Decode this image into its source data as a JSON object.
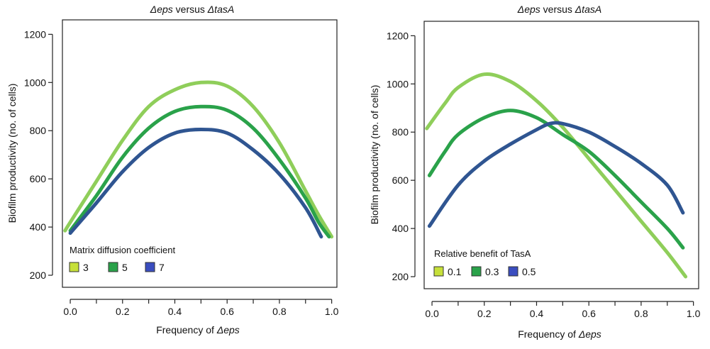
{
  "chart_data": [
    {
      "type": "line",
      "title_parts": [
        "Δeps",
        " versus ",
        "ΔtasA"
      ],
      "xlabel_parts": [
        "Frequency of ",
        "Δeps"
      ],
      "ylabel": "Biofilm productivity (no. of cells)",
      "xlim": [
        -0.03,
        1.02
      ],
      "ylim": [
        150,
        1260
      ],
      "xticks": [
        0.0,
        0.2,
        0.4,
        0.6,
        0.8,
        1.0
      ],
      "xtick_labels": [
        "0.0",
        "0.2",
        "0.4",
        "0.6",
        "0.8",
        "1.0"
      ],
      "yticks": [
        200,
        400,
        600,
        800,
        1000,
        1200
      ],
      "ytick_labels": [
        "200",
        "400",
        "600",
        "800",
        "1000",
        "1200"
      ],
      "grid": false,
      "legend": {
        "title": "Matrix diffusion coefficient",
        "placement": "bottom-left",
        "entries": [
          "3",
          "5",
          "7"
        ]
      },
      "series": [
        {
          "name": "3",
          "color": "#8fce5a",
          "x": [
            -0.02,
            0.0,
            0.1,
            0.2,
            0.3,
            0.4,
            0.5,
            0.6,
            0.7,
            0.8,
            0.9,
            0.95,
            1.0
          ],
          "y": [
            385,
            420,
            590,
            760,
            900,
            970,
            1000,
            985,
            900,
            750,
            550,
            450,
            360
          ]
        },
        {
          "name": "5",
          "color": "#2aa24a",
          "x": [
            0.0,
            0.1,
            0.2,
            0.3,
            0.4,
            0.5,
            0.6,
            0.7,
            0.8,
            0.9,
            0.95,
            0.99
          ],
          "y": [
            385,
            530,
            690,
            810,
            880,
            900,
            885,
            810,
            680,
            520,
            420,
            360
          ]
        },
        {
          "name": "7",
          "color": "#2f5591",
          "x": [
            0.0,
            0.1,
            0.2,
            0.3,
            0.4,
            0.5,
            0.6,
            0.7,
            0.8,
            0.9,
            0.96
          ],
          "y": [
            375,
            500,
            630,
            730,
            790,
            805,
            790,
            720,
            620,
            480,
            360
          ]
        }
      ]
    },
    {
      "type": "line",
      "title_parts": [
        "Δeps",
        " versus ",
        "ΔtasA"
      ],
      "xlabel_parts": [
        "Frequency of ",
        "Δeps"
      ],
      "ylabel": "Biofilm productivity (no. of cells)",
      "xlim": [
        -0.03,
        1.02
      ],
      "ylim": [
        150,
        1260
      ],
      "xticks": [
        0.0,
        0.2,
        0.4,
        0.6,
        0.8,
        1.0
      ],
      "xtick_labels": [
        "0.0",
        "0.2",
        "0.4",
        "0.6",
        "0.8",
        "1.0"
      ],
      "yticks": [
        200,
        400,
        600,
        800,
        1000,
        1200
      ],
      "ytick_labels": [
        "200",
        "400",
        "600",
        "800",
        "1000",
        "1200"
      ],
      "grid": false,
      "legend": {
        "title": "Relative benefit of TasA",
        "placement": "bottom-left",
        "entries": [
          "0.1",
          "0.3",
          "0.5"
        ]
      },
      "series": [
        {
          "name": "0.1",
          "color": "#8fce5a",
          "x": [
            -0.02,
            0.05,
            0.1,
            0.2,
            0.3,
            0.4,
            0.5,
            0.6,
            0.7,
            0.8,
            0.9,
            0.97
          ],
          "y": [
            815,
            920,
            985,
            1040,
            1010,
            930,
            820,
            690,
            560,
            430,
            300,
            200
          ]
        },
        {
          "name": "0.3",
          "color": "#2aa24a",
          "x": [
            -0.01,
            0.05,
            0.1,
            0.2,
            0.3,
            0.4,
            0.5,
            0.6,
            0.7,
            0.8,
            0.9,
            0.96
          ],
          "y": [
            620,
            720,
            790,
            860,
            890,
            860,
            790,
            720,
            620,
            510,
            400,
            320
          ]
        },
        {
          "name": "0.5",
          "color": "#2f5591",
          "x": [
            -0.01,
            0.1,
            0.2,
            0.3,
            0.4,
            0.45,
            0.5,
            0.6,
            0.7,
            0.8,
            0.9,
            0.96
          ],
          "y": [
            410,
            580,
            680,
            750,
            810,
            835,
            835,
            800,
            740,
            670,
            580,
            465
          ]
        }
      ]
    }
  ]
}
